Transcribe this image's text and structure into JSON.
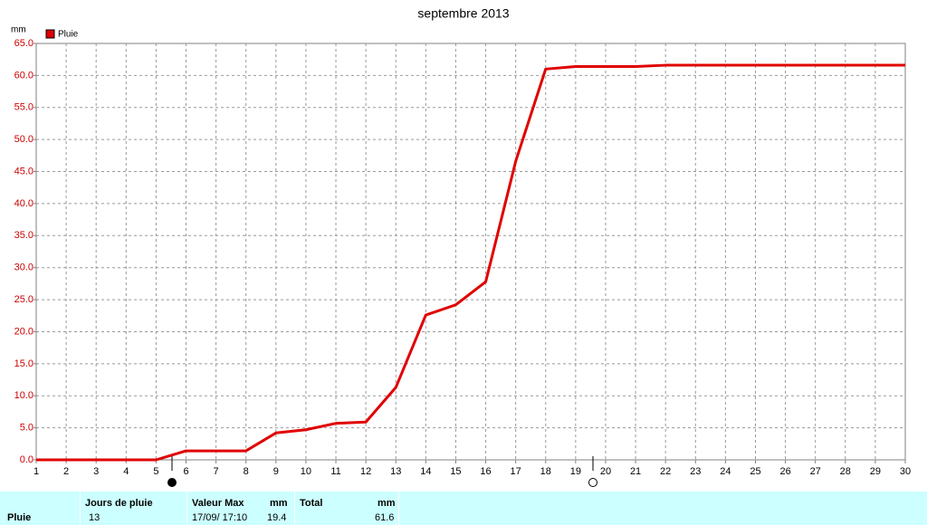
{
  "chart_data": {
    "type": "line",
    "title": "septembre 2013",
    "y_label": "mm",
    "x": [
      1,
      2,
      3,
      4,
      5,
      6,
      7,
      8,
      9,
      10,
      11,
      12,
      13,
      14,
      15,
      16,
      17,
      18,
      19,
      20,
      21,
      22,
      23,
      24,
      25,
      26,
      27,
      28,
      29,
      30
    ],
    "series": [
      {
        "name": "Pluie",
        "color": "#e00000",
        "values": [
          0,
          0,
          0,
          0,
          0,
          1.4,
          1.4,
          1.4,
          4.2,
          4.7,
          5.7,
          5.9,
          11.3,
          22.6,
          24.2,
          27.8,
          46.6,
          61.0,
          61.4,
          61.4,
          61.4,
          61.6,
          61.6,
          61.6,
          61.6,
          61.6,
          61.6,
          61.6,
          61.6,
          61.6
        ]
      }
    ],
    "xlim": [
      1,
      30
    ],
    "xticks": [
      1,
      2,
      3,
      4,
      5,
      6,
      7,
      8,
      9,
      10,
      11,
      12,
      13,
      14,
      15,
      16,
      17,
      18,
      19,
      20,
      21,
      22,
      23,
      24,
      25,
      26,
      27,
      28,
      29,
      30
    ],
    "ylim": [
      0,
      65
    ],
    "yticks": [
      {
        "value": 0,
        "label": "0.0"
      },
      {
        "value": 5,
        "label": "5.0"
      },
      {
        "value": 10,
        "label": "10.0"
      },
      {
        "value": 15,
        "label": "15.0"
      },
      {
        "value": 20,
        "label": "20.0"
      },
      {
        "value": 25,
        "label": "25.0"
      },
      {
        "value": 30,
        "label": "30.0"
      },
      {
        "value": 35,
        "label": "35.0"
      },
      {
        "value": 40,
        "label": "40.0"
      },
      {
        "value": 45,
        "label": "45.0"
      },
      {
        "value": 50,
        "label": "50.0"
      },
      {
        "value": 55,
        "label": "55.0"
      },
      {
        "value": 60,
        "label": "60.0"
      },
      {
        "value": 65,
        "label": "65.0"
      }
    ],
    "grid": true,
    "legend": "top-left"
  },
  "summary": {
    "row_label": "Pluie",
    "rain_days": {
      "header": "Jours de pluie",
      "value": 13
    },
    "max": {
      "header": "Valeur Max",
      "unit": "mm",
      "date": "17/09/ 17:10",
      "value": 19.4
    },
    "total": {
      "header": "Total",
      "unit": "mm",
      "value": 61.6
    }
  }
}
